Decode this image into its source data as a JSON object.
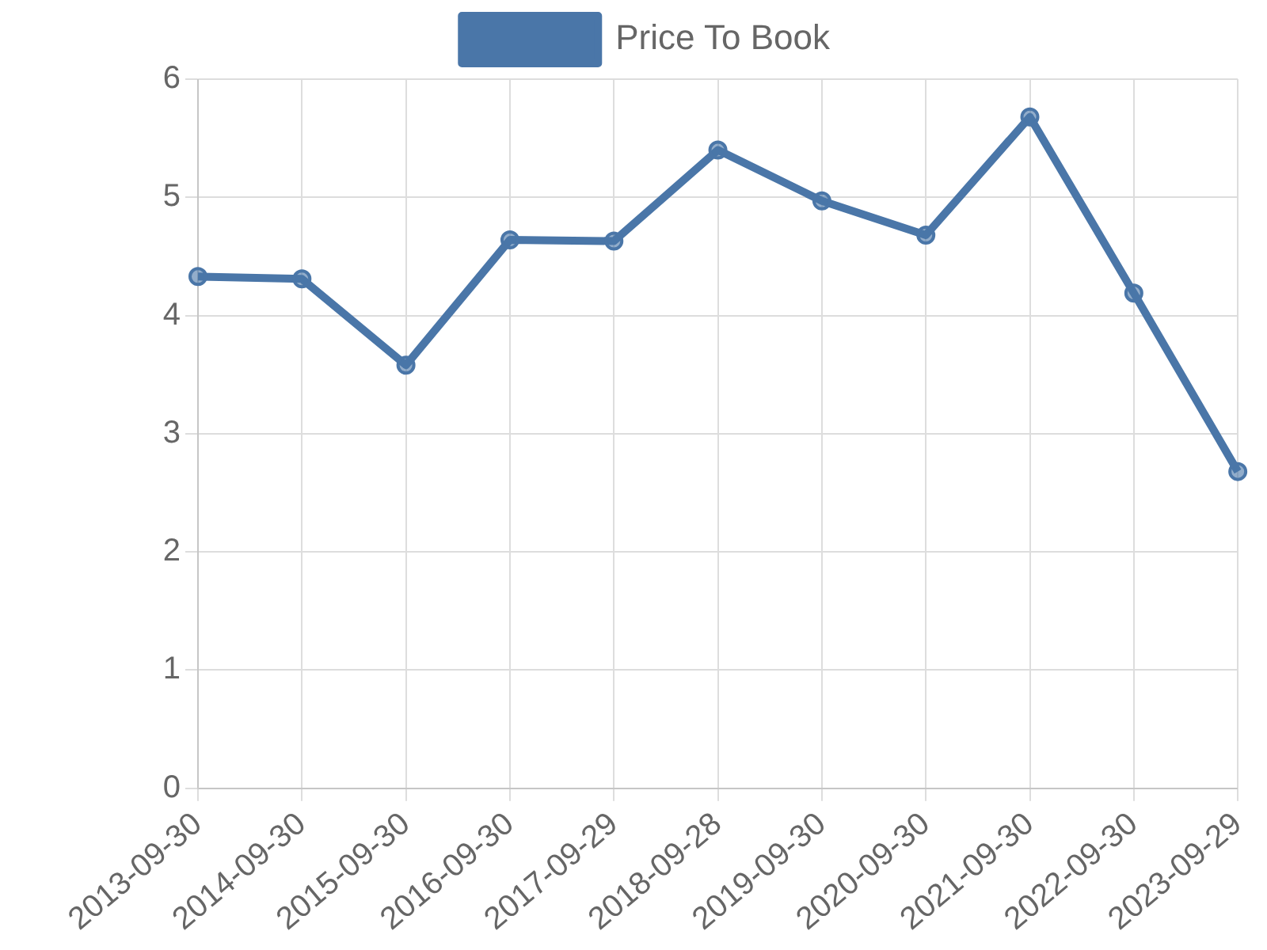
{
  "chart_data": {
    "type": "line",
    "categories": [
      "2013-09-30",
      "2014-09-30",
      "2015-09-30",
      "2016-09-30",
      "2017-09-29",
      "2018-09-28",
      "2019-09-30",
      "2020-09-30",
      "2021-09-30",
      "2022-09-30",
      "2023-09-29"
    ],
    "series": [
      {
        "name": "Price To Book",
        "color": "#4a76a8",
        "values": [
          4.33,
          4.31,
          3.58,
          4.64,
          4.63,
          5.4,
          4.97,
          4.68,
          5.68,
          4.19,
          2.68
        ]
      }
    ],
    "ylim": [
      0,
      6
    ],
    "yticks": [
      0,
      1,
      2,
      3,
      4,
      5,
      6
    ],
    "grid": true,
    "legend": "top",
    "marker": "circle",
    "line_style": "solid"
  }
}
